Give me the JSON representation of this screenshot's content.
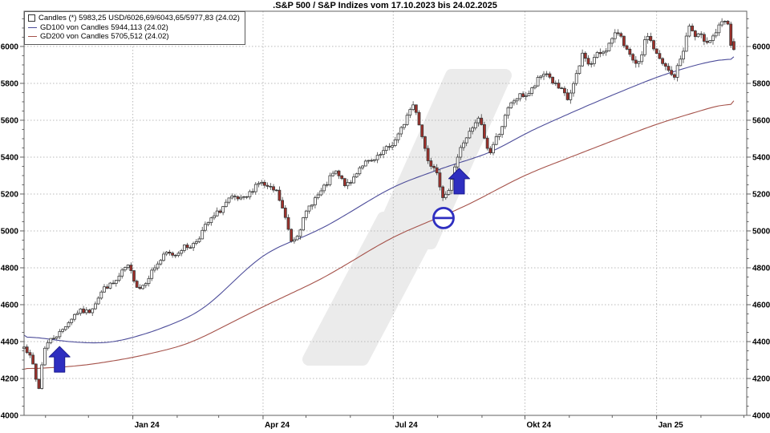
{
  "title": ".S&P 500 / S&P Indizes vom 17.10.2023 bis 24.02.2025",
  "legend": {
    "items": [
      {
        "swatch": "square",
        "label": "Candles (*) 5983,25 USD/6026,69/6043,65/5977,83 (24.02)"
      },
      {
        "swatch": "line-gd100",
        "label": "GD100 von Candles 5944,113 (24.02)"
      },
      {
        "swatch": "line-gd200",
        "label": "GD200 von Candles 5705,512 (24.02)"
      }
    ]
  },
  "colors": {
    "up_candle": "#ffffff",
    "down_candle": "#a1302a",
    "candle_stroke": "#3a3a3a",
    "wick": "#2a2a2a",
    "ma100": "#4d4d9a",
    "ma200": "#a5524a",
    "marker_blue": "#2e2ec0",
    "grid": "#b9b9b9",
    "border": "#606060",
    "watermark": "#ebebeb",
    "text": "#000000"
  },
  "chart_data": {
    "type": "candlestick",
    "title": ".S&P 500 / S&P Indizes vom 17.10.2023 bis 24.02.2025",
    "instrument": ".S&P 500 / S&P Indizes",
    "period_start": "17.10.2023",
    "period_end": "24.02.2025",
    "last_candle": {
      "close": 5983.25,
      "open": 6026.69,
      "high": 6043.65,
      "low": 5977.83,
      "date_label": "24.02"
    },
    "gd100_last": 5944.113,
    "gd200_last": 5705.512,
    "y_axis": {
      "min": 4000,
      "max": 6191,
      "major_ticks": [
        6000,
        5800,
        5600,
        5400,
        5200,
        5000,
        4800,
        4600,
        4400,
        4200,
        4000
      ],
      "minor_step": 50,
      "grid": true,
      "labels_both_sides": true
    },
    "x_axis": {
      "days_total": 505,
      "days_data": 496,
      "ticks": [
        {
          "label": "Jan 24",
          "day": 76
        },
        {
          "label": "Apr 24",
          "day": 167
        },
        {
          "label": "Jul 24",
          "day": 258
        },
        {
          "label": "Okt 24",
          "day": 350
        },
        {
          "label": "Jan 25",
          "day": 442
        }
      ],
      "month_tick_days": [
        15,
        45,
        76,
        107,
        136,
        167,
        197,
        228,
        258,
        289,
        320,
        350,
        381,
        411,
        442,
        473,
        503
      ],
      "grid": true
    },
    "candle_count": 240,
    "noise_seed": 7,
    "price_anchors": [
      [
        0.0,
        4373
      ],
      [
        0.014,
        4250
      ],
      [
        0.02,
        4117
      ],
      [
        0.028,
        4358
      ],
      [
        0.058,
        4508
      ],
      [
        0.091,
        4560
      ],
      [
        0.115,
        4707
      ],
      [
        0.145,
        4783
      ],
      [
        0.161,
        4688
      ],
      [
        0.2,
        4890
      ],
      [
        0.214,
        4846
      ],
      [
        0.272,
        5096
      ],
      [
        0.329,
        5254
      ],
      [
        0.355,
        5205
      ],
      [
        0.377,
        4967
      ],
      [
        0.438,
        5321
      ],
      [
        0.458,
        5266
      ],
      [
        0.514,
        5460
      ],
      [
        0.55,
        5660
      ],
      [
        0.57,
        5399
      ],
      [
        0.581,
        5346
      ],
      [
        0.591,
        5153
      ],
      [
        0.607,
        5344
      ],
      [
        0.641,
        5648
      ],
      [
        0.655,
        5408
      ],
      [
        0.681,
        5634
      ],
      [
        0.704,
        5762
      ],
      [
        0.736,
        5842
      ],
      [
        0.766,
        5705
      ],
      [
        0.788,
        6001
      ],
      [
        0.796,
        5870
      ],
      [
        0.839,
        6090
      ],
      [
        0.865,
        5872
      ],
      [
        0.879,
        6037
      ],
      [
        0.901,
        5909
      ],
      [
        0.915,
        5836
      ],
      [
        0.938,
        6101
      ],
      [
        0.944,
        6012
      ],
      [
        0.966,
        6066
      ],
      [
        0.99,
        6144
      ],
      [
        0.996,
        6013
      ],
      [
        1.0,
        5983
      ]
    ],
    "series": [
      {
        "name": "GD100 von Candles",
        "color": "#4d4d9a",
        "anchors": [
          [
            0.0,
            4435
          ],
          [
            0.06,
            4398
          ],
          [
            0.12,
            4388
          ],
          [
            0.18,
            4450
          ],
          [
            0.25,
            4560
          ],
          [
            0.337,
            4880
          ],
          [
            0.42,
            5010
          ],
          [
            0.52,
            5243
          ],
          [
            0.6,
            5355
          ],
          [
            0.66,
            5425
          ],
          [
            0.706,
            5530
          ],
          [
            0.8,
            5690
          ],
          [
            0.891,
            5835
          ],
          [
            0.95,
            5905
          ],
          [
            1.0,
            5944.113
          ]
        ]
      },
      {
        "name": "GD200 von Candles",
        "color": "#a5524a",
        "anchors": [
          [
            0.0,
            4250
          ],
          [
            0.08,
            4268
          ],
          [
            0.15,
            4310
          ],
          [
            0.23,
            4382
          ],
          [
            0.337,
            4590
          ],
          [
            0.42,
            4740
          ],
          [
            0.52,
            4970
          ],
          [
            0.62,
            5130
          ],
          [
            0.706,
            5305
          ],
          [
            0.8,
            5445
          ],
          [
            0.891,
            5580
          ],
          [
            1.0,
            5705.512
          ]
        ]
      }
    ],
    "markers": [
      {
        "type": "arrow-up",
        "t": 0.05,
        "value": 4304
      },
      {
        "type": "circle-minus",
        "t": 0.591,
        "value": 5070
      },
      {
        "type": "arrow-up",
        "t": 0.613,
        "value": 5270
      }
    ]
  }
}
